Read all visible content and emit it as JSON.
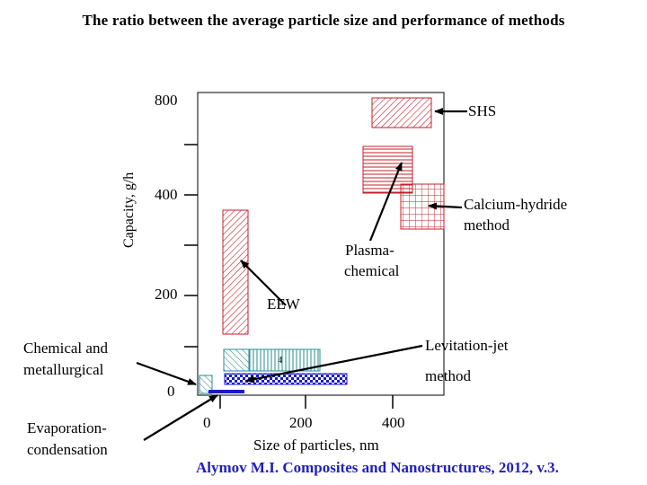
{
  "title": "The ratio between the average particle size and performance of methods",
  "y_axis": {
    "label": "Capacity, g/h",
    "ticks": [
      "800",
      "400",
      "200",
      "0"
    ]
  },
  "x_axis": {
    "label": "Size of particles, nm",
    "ticks": [
      "0",
      "200",
      "400"
    ]
  },
  "labels": {
    "shs": "SHS",
    "calcium_line1": "Calcium-hydride",
    "calcium_line2": "method",
    "plasma_line1": "Plasma-",
    "plasma_line2": "chemical",
    "eew": "EEW",
    "levitation_line1": "Levitation-jet",
    "levitation_line2": "method",
    "chemical_line1": "Chemical and",
    "chemical_line2": "metallurgical",
    "evap_line1": "Evaporation-",
    "evap_line2": "condensation",
    "small_mark": "4"
  },
  "citation": "Alymov M.I. Composites and Nanostructures, 2012, v.3.",
  "colors": {
    "red_hatch": "#c0202a",
    "teal_hatch": "#2a8c8c",
    "blue": "#1a1acc",
    "arrow": "#000000"
  }
}
